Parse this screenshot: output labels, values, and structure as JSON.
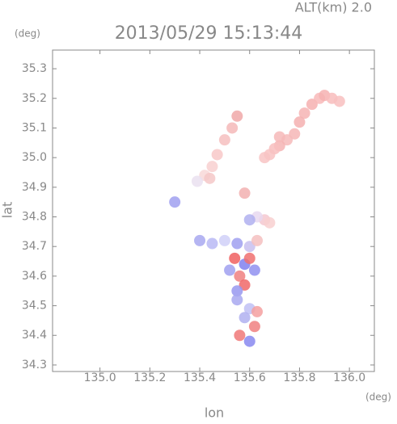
{
  "chart_data": {
    "type": "scatter",
    "annotation": "ALT(km) 2.0",
    "title": "2013/05/29 15:13:44",
    "y_unit": "(deg)",
    "x_unit": "(deg)",
    "xlabel": "lon",
    "ylabel": "lat",
    "xlim": [
      134.81,
      136.1
    ],
    "ylim": [
      34.278,
      35.363
    ],
    "xticks": [
      {
        "value": 135,
        "label": "135.0"
      },
      135.2,
      135.4,
      135.6,
      135.8,
      {
        "value": 136,
        "label": "136.0"
      }
    ],
    "yticks": [
      34.3,
      34.4,
      34.5,
      34.6,
      34.7,
      34.8,
      34.9,
      {
        "value": 35,
        "label": "35.0"
      },
      35.1,
      35.2,
      35.3
    ],
    "x": [
      135.82,
      135.85,
      135.88,
      135.9,
      135.93,
      135.96,
      135.8,
      135.78,
      135.75,
      135.72,
      135.7,
      135.68,
      135.66,
      135.72,
      135.55,
      135.53,
      135.5,
      135.47,
      135.45,
      135.42,
      135.39,
      135.44,
      135.58,
      135.66,
      135.68,
      135.63,
      135.6,
      135.4,
      135.45,
      135.5,
      135.55,
      135.6,
      135.63,
      135.54,
      135.58,
      135.6,
      135.62,
      135.56,
      135.52,
      135.58,
      135.55,
      135.55,
      135.6,
      135.58,
      135.63,
      135.62,
      135.56,
      135.6,
      135.3
    ],
    "values": [
      35.15,
      35.18,
      35.2,
      35.21,
      35.2,
      35.19,
      35.12,
      35.08,
      35.06,
      35.04,
      35.03,
      35.01,
      35.0,
      35.07,
      35.14,
      35.1,
      35.06,
      35.01,
      34.97,
      34.94,
      34.92,
      34.93,
      34.88,
      34.79,
      34.78,
      34.8,
      34.79,
      34.72,
      34.71,
      34.72,
      34.71,
      34.7,
      34.72,
      34.66,
      34.64,
      34.66,
      34.62,
      34.6,
      34.62,
      34.57,
      34.55,
      34.52,
      34.49,
      34.46,
      34.48,
      34.43,
      34.4,
      34.38,
      34.85
    ],
    "colors": [
      "#f6b4b4",
      "#f6b0b0",
      "#f8b8b8",
      "#f6b2b2",
      "#f8bcbc",
      "#f8c0c0",
      "#f4b0b0",
      "#f6b6b6",
      "#f6baba",
      "#f4b4b4",
      "#f8bebe",
      "#f8c2c2",
      "#f8c4c4",
      "#f6b8b8",
      "#f0a8a8",
      "#f4b8b8",
      "#f6c0c0",
      "#f8c8c8",
      "#f8d0d0",
      "#f8d8d8",
      "#eae0f0",
      "#f4c8c8",
      "#f2b0b0",
      "#f4c8d0",
      "#f8d0d0",
      "#e8d8f0",
      "#b0b0f0",
      "#a8a8f0",
      "#b8b8f4",
      "#d0d0f8",
      "#a0a0f0",
      "#c8c0f0",
      "#f4c0c0",
      "#f06060",
      "#8080f0",
      "#f07070",
      "#9090f0",
      "#f08080",
      "#a0a0f0",
      "#f06868",
      "#9898f0",
      "#a8a8f0",
      "#c0c0f4",
      "#b0b0f0",
      "#f4a0a0",
      "#f08080",
      "#f07878",
      "#8888f0",
      "#a0a0f0"
    ]
  }
}
